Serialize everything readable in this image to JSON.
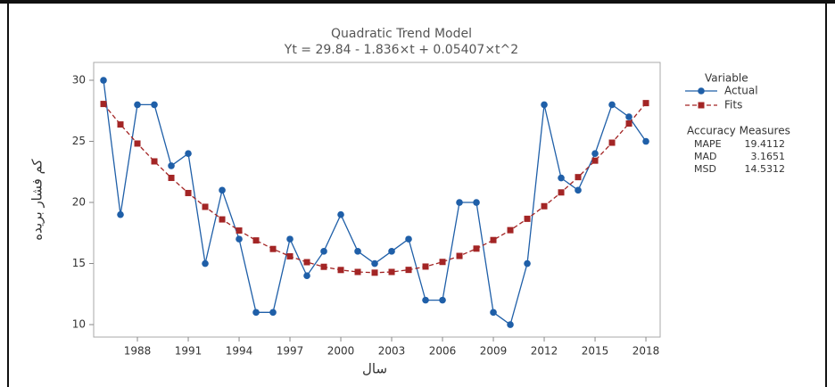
{
  "chart_data": {
    "type": "line",
    "title": "Quadratic Trend Model",
    "subtitle": "Yt = 29.84 - 1.836×t + 0.05407×t^2",
    "x_label": "سال",
    "y_label": "کم فشار بریده",
    "x": [
      1986,
      1987,
      1988,
      1989,
      1990,
      1991,
      1992,
      1993,
      1994,
      1995,
      1996,
      1997,
      1998,
      1999,
      2000,
      2001,
      2002,
      2003,
      2004,
      2005,
      2006,
      2007,
      2008,
      2009,
      2010,
      2011,
      2012,
      2013,
      2014,
      2015,
      2016,
      2017,
      2018
    ],
    "series": [
      {
        "name": "Actual",
        "color": "#1f5fa8",
        "marker": "circle",
        "dashed": false,
        "values": [
          30,
          19,
          28,
          28,
          23,
          24,
          15,
          21,
          17,
          11,
          11,
          17,
          14,
          16,
          19,
          16,
          15,
          16,
          17,
          12,
          12,
          20,
          20,
          11,
          10,
          15,
          28,
          22,
          21,
          24,
          28,
          27,
          25
        ]
      },
      {
        "name": "Fits",
        "color": "#a32525",
        "marker": "square",
        "dashed": true,
        "values": [
          28.06,
          26.38,
          24.82,
          23.36,
          22.01,
          20.77,
          19.64,
          18.61,
          17.7,
          16.89,
          16.19,
          15.59,
          15.11,
          14.73,
          14.47,
          14.31,
          14.25,
          14.31,
          14.48,
          14.75,
          15.13,
          15.62,
          16.22,
          16.92,
          17.73,
          18.66,
          19.69,
          20.82,
          22.07,
          23.42,
          24.89,
          26.46,
          28.13
        ]
      }
    ],
    "legend_title": "Variable",
    "accuracy": {
      "title": "Accuracy Measures",
      "rows": [
        [
          "MAPE",
          19.4112
        ],
        [
          "MAD",
          3.1651
        ],
        [
          "MSD",
          14.5312
        ]
      ]
    },
    "xlim": [
      1985.42,
      2018.84
    ],
    "xticks": [
      1988,
      1991,
      1994,
      1997,
      2000,
      2003,
      2006,
      2009,
      2012,
      2015,
      2018
    ],
    "ylim": [
      8.98,
      31.46
    ],
    "yticks": [
      10,
      15,
      20,
      25,
      30
    ],
    "grid": false
  }
}
